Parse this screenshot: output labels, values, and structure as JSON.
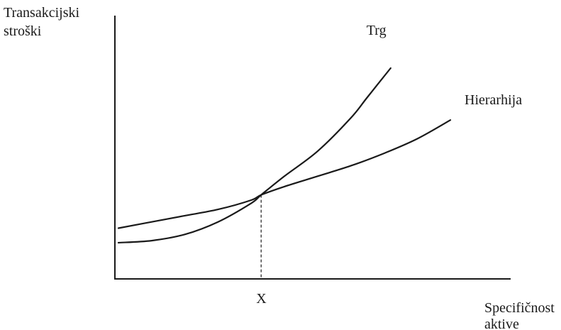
{
  "chart_data": {
    "type": "line",
    "title": "",
    "ylabel": [
      "Transakcijski",
      "stroški"
    ],
    "xlabel": [
      "Specifičnost",
      "aktive"
    ],
    "xlim": [
      0,
      10
    ],
    "ylim": [
      0,
      10
    ],
    "grid": false,
    "legend": "none",
    "annotations": [
      {
        "text": "X",
        "x": 4.3,
        "kind": "x-axis-marker"
      }
    ],
    "series": [
      {
        "name": "Trg",
        "color": "#1a1a1a",
        "x": [
          0,
          1,
          2,
          3,
          4,
          4.3,
          5,
          6,
          7,
          7.5,
          8.2
        ],
        "y": [
          1.6,
          1.7,
          2.0,
          2.6,
          3.5,
          3.9,
          4.8,
          6.0,
          7.6,
          8.6,
          10.0
        ]
      },
      {
        "name": "Hierarhija",
        "color": "#1a1a1a",
        "x": [
          0,
          1,
          2,
          3,
          4,
          4.3,
          5,
          6,
          7,
          8,
          9,
          10
        ],
        "y": [
          2.3,
          2.6,
          2.9,
          3.2,
          3.65,
          3.9,
          4.3,
          4.8,
          5.3,
          5.9,
          6.6,
          7.5
        ]
      }
    ]
  }
}
